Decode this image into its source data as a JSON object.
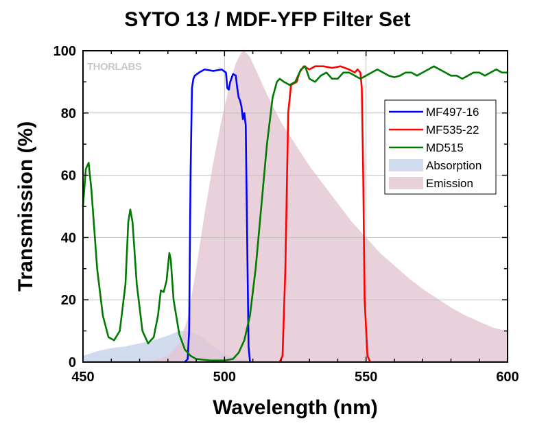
{
  "chart_data": {
    "type": "line",
    "title": "SYTO 13 / MDF-YFP Filter Set",
    "xlabel": "Wavelength (nm)",
    "ylabel": "Transmission (%)",
    "xlim": [
      450,
      600
    ],
    "ylim": [
      0,
      100
    ],
    "x_ticks": [
      450,
      500,
      550,
      600
    ],
    "y_ticks": [
      0,
      20,
      40,
      60,
      80,
      100
    ],
    "grid": true,
    "legend_position": "right",
    "watermark": "THORLABS",
    "series": [
      {
        "name": "MF497-16",
        "kind": "line",
        "color": "#0000ff",
        "points": [
          [
            486,
            0
          ],
          [
            487,
            1
          ],
          [
            487.5,
            10
          ],
          [
            488,
            60
          ],
          [
            488.5,
            88
          ],
          [
            489,
            91
          ],
          [
            489.5,
            92
          ],
          [
            491,
            93
          ],
          [
            493,
            94
          ],
          [
            496,
            93.5
          ],
          [
            499,
            94
          ],
          [
            500.5,
            93
          ],
          [
            501,
            88
          ],
          [
            501.5,
            87.5
          ],
          [
            502,
            90
          ],
          [
            503,
            92.5
          ],
          [
            504,
            92
          ],
          [
            504.5,
            88
          ],
          [
            505,
            85
          ],
          [
            505.5,
            84
          ],
          [
            506,
            82
          ],
          [
            506.5,
            78
          ],
          [
            507,
            80
          ],
          [
            507.5,
            76
          ],
          [
            508,
            40
          ],
          [
            508.5,
            5
          ],
          [
            509,
            0
          ]
        ]
      },
      {
        "name": "MF535-22",
        "kind": "line",
        "color": "#ff0000",
        "points": [
          [
            519.5,
            0
          ],
          [
            520.5,
            2
          ],
          [
            521.5,
            30
          ],
          [
            522.5,
            80
          ],
          [
            523.5,
            89
          ],
          [
            524.5,
            89.5
          ],
          [
            525.5,
            90
          ],
          [
            526.5,
            93
          ],
          [
            528,
            95
          ],
          [
            530,
            94
          ],
          [
            532,
            95
          ],
          [
            535,
            95
          ],
          [
            538,
            94.5
          ],
          [
            541,
            95
          ],
          [
            544,
            94
          ],
          [
            546,
            93
          ],
          [
            547,
            94
          ],
          [
            548,
            93
          ],
          [
            548.5,
            88
          ],
          [
            549,
            60
          ],
          [
            549.5,
            20
          ],
          [
            550.5,
            2
          ],
          [
            551.5,
            0
          ]
        ]
      },
      {
        "name": "MD515",
        "kind": "line",
        "color": "#007a00",
        "points": [
          [
            450,
            50
          ],
          [
            451,
            62
          ],
          [
            452,
            64
          ],
          [
            453,
            55
          ],
          [
            455,
            30
          ],
          [
            457,
            15
          ],
          [
            459,
            8
          ],
          [
            461,
            7
          ],
          [
            463,
            10
          ],
          [
            465,
            25
          ],
          [
            466,
            45
          ],
          [
            466.7,
            49
          ],
          [
            467.5,
            45
          ],
          [
            469,
            25
          ],
          [
            471,
            10
          ],
          [
            473,
            6
          ],
          [
            475,
            8
          ],
          [
            476.5,
            15
          ],
          [
            477.5,
            23
          ],
          [
            478.5,
            22.5
          ],
          [
            479.5,
            26
          ],
          [
            480.5,
            35
          ],
          [
            481,
            33
          ],
          [
            482,
            20
          ],
          [
            484,
            9
          ],
          [
            486,
            4
          ],
          [
            488,
            2
          ],
          [
            490,
            1
          ],
          [
            495,
            0.5
          ],
          [
            500,
            0.5
          ],
          [
            503,
            1
          ],
          [
            505,
            3
          ],
          [
            507,
            7
          ],
          [
            509,
            15
          ],
          [
            511,
            30
          ],
          [
            513,
            50
          ],
          [
            515,
            70
          ],
          [
            517,
            85
          ],
          [
            518.5,
            90
          ],
          [
            519.5,
            91
          ],
          [
            521,
            90
          ],
          [
            523,
            89
          ],
          [
            525,
            90
          ],
          [
            527,
            94
          ],
          [
            528.5,
            95
          ],
          [
            530,
            91
          ],
          [
            532,
            90
          ],
          [
            534,
            92
          ],
          [
            536,
            93
          ],
          [
            538,
            91
          ],
          [
            540,
            91
          ],
          [
            542,
            93
          ],
          [
            544,
            93
          ],
          [
            546,
            92
          ],
          [
            548,
            91
          ],
          [
            550,
            92
          ],
          [
            552,
            93
          ],
          [
            554,
            94
          ],
          [
            556,
            93
          ],
          [
            558,
            92
          ],
          [
            560,
            91.5
          ],
          [
            562,
            92
          ],
          [
            564,
            93
          ],
          [
            566,
            93
          ],
          [
            568,
            92
          ],
          [
            570,
            93
          ],
          [
            572,
            94
          ],
          [
            574,
            95
          ],
          [
            576,
            94
          ],
          [
            578,
            93
          ],
          [
            580,
            92
          ],
          [
            582,
            92
          ],
          [
            584,
            91
          ],
          [
            586,
            92
          ],
          [
            588,
            93
          ],
          [
            590,
            93
          ],
          [
            592,
            92
          ],
          [
            594,
            93
          ],
          [
            596,
            94
          ],
          [
            598,
            93
          ],
          [
            600,
            93
          ]
        ]
      },
      {
        "name": "Absorption",
        "kind": "area",
        "color": "#c5d2ea",
        "points": [
          [
            450,
            2
          ],
          [
            455,
            3.5
          ],
          [
            460,
            4.5
          ],
          [
            465,
            5
          ],
          [
            470,
            6
          ],
          [
            475,
            7
          ],
          [
            480,
            8.5
          ],
          [
            484,
            10
          ],
          [
            487,
            10
          ],
          [
            490,
            9
          ],
          [
            493,
            7.5
          ],
          [
            496,
            5
          ],
          [
            500,
            2.5
          ],
          [
            505,
            1
          ],
          [
            510,
            0.3
          ],
          [
            515,
            0
          ]
        ]
      },
      {
        "name": "Emission",
        "kind": "area",
        "color": "#e3c6d3",
        "points": [
          [
            470,
            0
          ],
          [
            475,
            0.5
          ],
          [
            480,
            2
          ],
          [
            484,
            6
          ],
          [
            487,
            14
          ],
          [
            490,
            30
          ],
          [
            493,
            48
          ],
          [
            496,
            64
          ],
          [
            499,
            78
          ],
          [
            502,
            90
          ],
          [
            504,
            96
          ],
          [
            506,
            99.5
          ],
          [
            507,
            100
          ],
          [
            509,
            98
          ],
          [
            511,
            94
          ],
          [
            515,
            86
          ],
          [
            520,
            77
          ],
          [
            525,
            70
          ],
          [
            530,
            63
          ],
          [
            535,
            57
          ],
          [
            540,
            51
          ],
          [
            545,
            45
          ],
          [
            550,
            40
          ],
          [
            555,
            35
          ],
          [
            560,
            31
          ],
          [
            565,
            27
          ],
          [
            570,
            23.5
          ],
          [
            575,
            20.5
          ],
          [
            580,
            17.5
          ],
          [
            585,
            15
          ],
          [
            590,
            13
          ],
          [
            595,
            11
          ],
          [
            600,
            10
          ]
        ]
      }
    ]
  }
}
